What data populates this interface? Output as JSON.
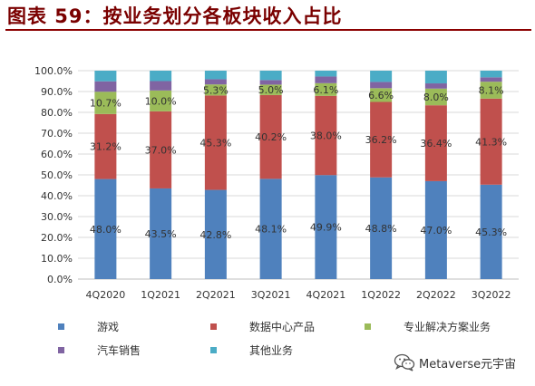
{
  "header": {
    "title": "图表 59：按业务划分各板块收入占比"
  },
  "watermark": {
    "text": "Metaverse元宇宙",
    "icon": "wechat-icon"
  },
  "chart_data": {
    "type": "bar",
    "stacked": true,
    "title": "",
    "xlabel": "",
    "ylabel": "",
    "ylim": [
      0,
      100
    ],
    "y_ticks": [
      "0.0%",
      "10.0%",
      "20.0%",
      "30.0%",
      "40.0%",
      "50.0%",
      "60.0%",
      "70.0%",
      "80.0%",
      "90.0%",
      "100.0%"
    ],
    "grid": true,
    "legend_position": "bottom",
    "categories": [
      "4Q2020",
      "1Q2021",
      "2Q2021",
      "3Q2021",
      "4Q2021",
      "1Q2022",
      "2Q2022",
      "3Q2022"
    ],
    "series": [
      {
        "name": "游戏",
        "color": "#4f81bd",
        "values": [
          48.0,
          43.5,
          42.8,
          48.1,
          49.9,
          48.8,
          47.0,
          45.3
        ],
        "labels": [
          "48.0%",
          "43.5%",
          "42.8%",
          "48.1%",
          "49.9%",
          "48.8%",
          "47.0%",
          "45.3%"
        ]
      },
      {
        "name": "数据中心产品",
        "color": "#c0504d",
        "values": [
          31.2,
          37.0,
          45.3,
          40.2,
          38.0,
          36.2,
          36.4,
          41.3
        ],
        "labels": [
          "31.2%",
          "37.0%",
          "45.3%",
          "40.2%",
          "38.0%",
          "36.2%",
          "36.4%",
          "41.3%"
        ]
      },
      {
        "name": "专业解决方案业务",
        "color": "#9bbb59",
        "values": [
          10.7,
          10.0,
          5.3,
          5.0,
          6.1,
          6.6,
          8.0,
          8.1
        ],
        "labels": [
          "10.7%",
          "10.0%",
          "5.3%",
          "5.0%",
          "6.1%",
          "6.6%",
          "8.0%",
          "8.1%"
        ]
      },
      {
        "name": "汽车销售",
        "color": "#8064a2",
        "values": [
          5.0,
          4.5,
          2.5,
          2.2,
          3.2,
          3.0,
          2.5,
          2.1
        ]
      },
      {
        "name": "其他业务",
        "color": "#4bacc6",
        "values": [
          5.1,
          5.0,
          4.1,
          4.5,
          2.8,
          5.4,
          6.1,
          3.2
        ]
      }
    ]
  }
}
